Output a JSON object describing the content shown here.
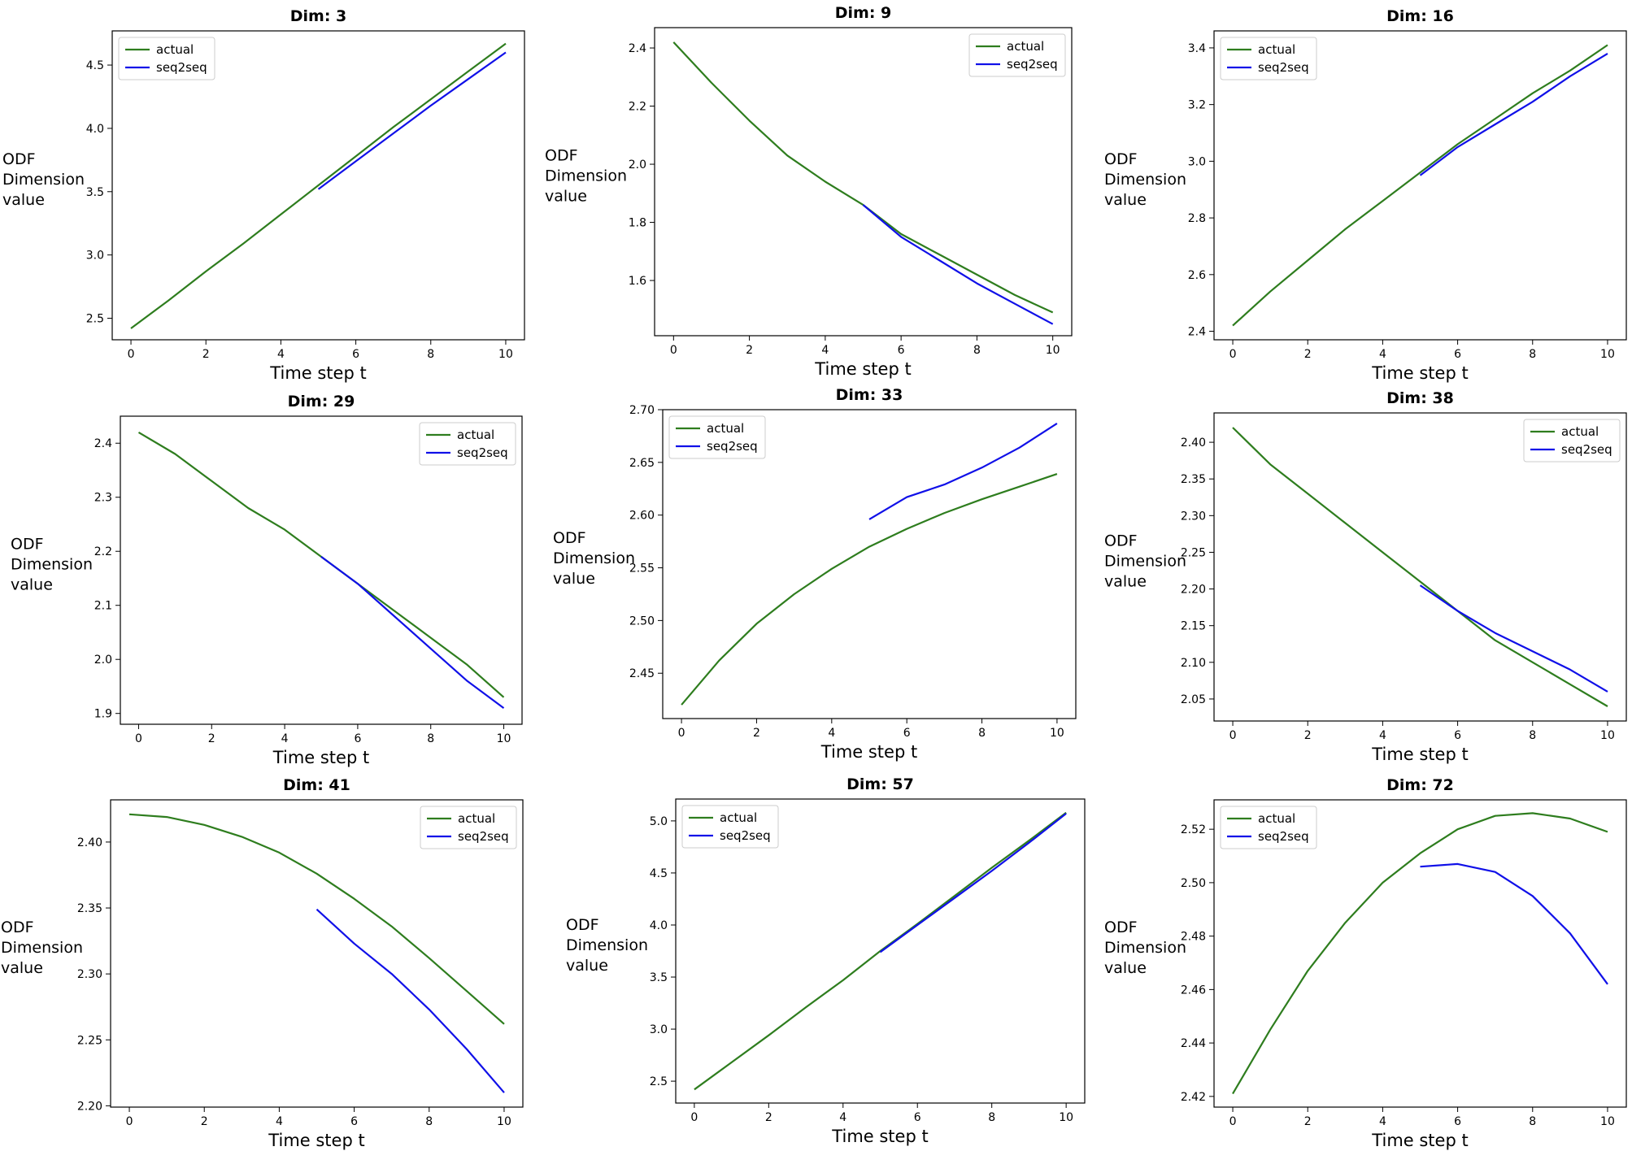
{
  "chart_data": [
    {
      "type": "line",
      "title": "Dim: 3",
      "xlabel": "Time step t",
      "ylabel_lines": [
        "ODF",
        "Dimension",
        "value"
      ],
      "legend_position": "upper-left",
      "xlim": [
        -0.5,
        10.5
      ],
      "ylim": [
        2.33,
        4.77
      ],
      "xticks": [
        0,
        2,
        4,
        6,
        8,
        10
      ],
      "yticks": [
        2.5,
        3.0,
        3.5,
        4.0,
        4.5
      ],
      "ytick_labels": [
        "2.5",
        "3.0",
        "3.5",
        "4.0",
        "4.5"
      ],
      "series": [
        {
          "name": "actual",
          "color": "#2e7d1e",
          "x": [
            0,
            1,
            2,
            3,
            4,
            5,
            6,
            7,
            8,
            9,
            10
          ],
          "y": [
            2.42,
            2.64,
            2.87,
            3.09,
            3.32,
            3.55,
            3.78,
            4.01,
            4.23,
            4.45,
            4.67
          ]
        },
        {
          "name": "seq2seq",
          "color": "#1010e8",
          "x": [
            5,
            6,
            7,
            8,
            9,
            10
          ],
          "y": [
            3.52,
            3.74,
            3.96,
            4.18,
            4.39,
            4.6
          ]
        }
      ]
    },
    {
      "type": "line",
      "title": "Dim: 9",
      "xlabel": "Time step t",
      "ylabel_lines": [
        "ODF",
        "Dimension",
        "value"
      ],
      "legend_position": "upper-right",
      "xlim": [
        -0.5,
        10.5
      ],
      "ylim": [
        1.41,
        2.47
      ],
      "xticks": [
        0,
        2,
        4,
        6,
        8,
        10
      ],
      "yticks": [
        1.6,
        1.8,
        2.0,
        2.2,
        2.4
      ],
      "ytick_labels": [
        "1.6",
        "1.8",
        "2.0",
        "2.2",
        "2.4"
      ],
      "series": [
        {
          "name": "actual",
          "color": "#2e7d1e",
          "x": [
            0,
            1,
            2,
            3,
            4,
            5,
            6,
            7,
            8,
            9,
            10
          ],
          "y": [
            2.42,
            2.28,
            2.15,
            2.03,
            1.94,
            1.86,
            1.76,
            1.69,
            1.62,
            1.55,
            1.49
          ]
        },
        {
          "name": "seq2seq",
          "color": "#1010e8",
          "x": [
            5,
            6,
            7,
            8,
            9,
            10
          ],
          "y": [
            1.86,
            1.75,
            1.67,
            1.59,
            1.52,
            1.45
          ]
        }
      ]
    },
    {
      "type": "line",
      "title": "Dim: 16",
      "xlabel": "Time step t",
      "ylabel_lines": [
        "ODF",
        "Dimension",
        "value"
      ],
      "legend_position": "upper-left",
      "xlim": [
        -0.5,
        10.5
      ],
      "ylim": [
        2.37,
        3.46
      ],
      "xticks": [
        0,
        2,
        4,
        6,
        8,
        10
      ],
      "yticks": [
        2.4,
        2.6,
        2.8,
        3.0,
        3.2,
        3.4
      ],
      "ytick_labels": [
        "2.4",
        "2.6",
        "2.8",
        "3.0",
        "3.2",
        "3.4"
      ],
      "series": [
        {
          "name": "actual",
          "color": "#2e7d1e",
          "x": [
            0,
            1,
            2,
            3,
            4,
            5,
            6,
            7,
            8,
            9,
            10
          ],
          "y": [
            2.42,
            2.54,
            2.65,
            2.76,
            2.86,
            2.96,
            3.06,
            3.15,
            3.24,
            3.32,
            3.41
          ]
        },
        {
          "name": "seq2seq",
          "color": "#1010e8",
          "x": [
            5,
            6,
            7,
            8,
            9,
            10
          ],
          "y": [
            2.95,
            3.05,
            3.13,
            3.21,
            3.3,
            3.38
          ]
        }
      ]
    },
    {
      "type": "line",
      "title": "Dim: 29",
      "xlabel": "Time step t",
      "ylabel_lines": [
        "ODF",
        "Dimension",
        "value"
      ],
      "legend_position": "upper-right",
      "xlim": [
        -0.5,
        10.5
      ],
      "ylim": [
        1.88,
        2.45
      ],
      "xticks": [
        0,
        2,
        4,
        6,
        8,
        10
      ],
      "yticks": [
        1.9,
        2.0,
        2.1,
        2.2,
        2.3,
        2.4
      ],
      "ytick_labels": [
        "1.9",
        "2.0",
        "2.1",
        "2.2",
        "2.3",
        "2.4"
      ],
      "series": [
        {
          "name": "actual",
          "color": "#2e7d1e",
          "x": [
            0,
            1,
            2,
            3,
            4,
            5,
            6,
            7,
            8,
            9,
            10
          ],
          "y": [
            2.42,
            2.38,
            2.33,
            2.28,
            2.24,
            2.19,
            2.14,
            2.09,
            2.04,
            1.99,
            1.93
          ]
        },
        {
          "name": "seq2seq",
          "color": "#1010e8",
          "x": [
            5,
            6,
            7,
            8,
            9,
            10
          ],
          "y": [
            2.19,
            2.14,
            2.08,
            2.02,
            1.96,
            1.91
          ]
        }
      ]
    },
    {
      "type": "line",
      "title": "Dim: 33",
      "xlabel": "Time step t",
      "ylabel_lines": [
        "ODF",
        "Dimension",
        "value"
      ],
      "legend_position": "upper-left",
      "xlim": [
        -0.5,
        10.5
      ],
      "ylim": [
        2.407,
        2.7
      ],
      "xticks": [
        0,
        2,
        4,
        6,
        8,
        10
      ],
      "yticks": [
        2.45,
        2.5,
        2.55,
        2.6,
        2.65,
        2.7
      ],
      "ytick_labels": [
        "2.45",
        "2.50",
        "2.55",
        "2.60",
        "2.65",
        "2.70"
      ],
      "series": [
        {
          "name": "actual",
          "color": "#2e7d1e",
          "x": [
            0,
            1,
            2,
            3,
            4,
            5,
            6,
            7,
            8,
            9,
            10
          ],
          "y": [
            2.42,
            2.462,
            2.497,
            2.525,
            2.549,
            2.57,
            2.587,
            2.602,
            2.615,
            2.627,
            2.639
          ]
        },
        {
          "name": "seq2seq",
          "color": "#1010e8",
          "x": [
            5,
            6,
            7,
            8,
            9,
            10
          ],
          "y": [
            2.596,
            2.617,
            2.629,
            2.645,
            2.664,
            2.687
          ]
        }
      ]
    },
    {
      "type": "line",
      "title": "Dim: 38",
      "xlabel": "Time step t",
      "ylabel_lines": [
        "ODF",
        "Dimension",
        "value"
      ],
      "legend_position": "upper-right",
      "xlim": [
        -0.5,
        10.5
      ],
      "ylim": [
        2.02,
        2.44
      ],
      "xticks": [
        0,
        2,
        4,
        6,
        8,
        10
      ],
      "yticks": [
        2.05,
        2.1,
        2.15,
        2.2,
        2.25,
        2.3,
        2.35,
        2.4
      ],
      "ytick_labels": [
        "2.05",
        "2.10",
        "2.15",
        "2.20",
        "2.25",
        "2.30",
        "2.35",
        "2.40"
      ],
      "series": [
        {
          "name": "actual",
          "color": "#2e7d1e",
          "x": [
            0,
            1,
            2,
            3,
            4,
            5,
            6,
            7,
            8,
            9,
            10
          ],
          "y": [
            2.42,
            2.37,
            2.33,
            2.29,
            2.25,
            2.21,
            2.17,
            2.13,
            2.1,
            2.07,
            2.04
          ]
        },
        {
          "name": "seq2seq",
          "color": "#1010e8",
          "x": [
            5,
            6,
            7,
            8,
            9,
            10
          ],
          "y": [
            2.205,
            2.17,
            2.14,
            2.115,
            2.09,
            2.06
          ]
        }
      ]
    },
    {
      "type": "line",
      "title": "Dim: 41",
      "xlabel": "Time step t",
      "ylabel_lines": [
        "ODF",
        "Dimension",
        "value"
      ],
      "legend_position": "upper-right",
      "xlim": [
        -0.5,
        10.5
      ],
      "ylim": [
        2.199,
        2.432
      ],
      "xticks": [
        0,
        2,
        4,
        6,
        8,
        10
      ],
      "yticks": [
        2.2,
        2.25,
        2.3,
        2.35,
        2.4
      ],
      "ytick_labels": [
        "2.20",
        "2.25",
        "2.30",
        "2.35",
        "2.40"
      ],
      "series": [
        {
          "name": "actual",
          "color": "#2e7d1e",
          "x": [
            0,
            1,
            2,
            3,
            4,
            5,
            6,
            7,
            8,
            9,
            10
          ],
          "y": [
            2.421,
            2.419,
            2.413,
            2.404,
            2.392,
            2.376,
            2.357,
            2.336,
            2.312,
            2.287,
            2.262
          ]
        },
        {
          "name": "seq2seq",
          "color": "#1010e8",
          "x": [
            5,
            6,
            7,
            8,
            9,
            10
          ],
          "y": [
            2.349,
            2.323,
            2.3,
            2.273,
            2.243,
            2.21
          ]
        }
      ]
    },
    {
      "type": "line",
      "title": "Dim: 57",
      "xlabel": "Time step t",
      "ylabel_lines": [
        "ODF",
        "Dimension",
        "value"
      ],
      "legend_position": "upper-left",
      "xlim": [
        -0.5,
        10.5
      ],
      "ylim": [
        2.29,
        5.21
      ],
      "xticks": [
        0,
        2,
        4,
        6,
        8,
        10
      ],
      "yticks": [
        2.5,
        3.0,
        3.5,
        4.0,
        4.5,
        5.0
      ],
      "ytick_labels": [
        "2.5",
        "3.0",
        "3.5",
        "4.0",
        "4.5",
        "5.0"
      ],
      "series": [
        {
          "name": "actual",
          "color": "#2e7d1e",
          "x": [
            0,
            1,
            2,
            3,
            4,
            5,
            6,
            7,
            8,
            9,
            10
          ],
          "y": [
            2.42,
            2.68,
            2.94,
            3.21,
            3.47,
            3.75,
            4.01,
            4.28,
            4.55,
            4.81,
            5.08
          ]
        },
        {
          "name": "seq2seq",
          "color": "#1010e8",
          "x": [
            5,
            6,
            7,
            8,
            9,
            10
          ],
          "y": [
            3.74,
            4.0,
            4.26,
            4.52,
            4.79,
            5.07
          ]
        }
      ]
    },
    {
      "type": "line",
      "title": "Dim: 72",
      "xlabel": "Time step t",
      "ylabel_lines": [
        "ODF",
        "Dimension",
        "value"
      ],
      "legend_position": "upper-left",
      "xlim": [
        -0.5,
        10.5
      ],
      "ylim": [
        2.416,
        2.531
      ],
      "xticks": [
        0,
        2,
        4,
        6,
        8,
        10
      ],
      "yticks": [
        2.42,
        2.44,
        2.46,
        2.48,
        2.5,
        2.52
      ],
      "ytick_labels": [
        "2.42",
        "2.44",
        "2.46",
        "2.48",
        "2.50",
        "2.52"
      ],
      "series": [
        {
          "name": "actual",
          "color": "#2e7d1e",
          "x": [
            0,
            1,
            2,
            3,
            4,
            5,
            6,
            7,
            8,
            9,
            10
          ],
          "y": [
            2.421,
            2.445,
            2.467,
            2.485,
            2.5,
            2.511,
            2.52,
            2.525,
            2.526,
            2.524,
            2.519
          ]
        },
        {
          "name": "seq2seq",
          "color": "#1010e8",
          "x": [
            5,
            6,
            7,
            8,
            9,
            10
          ],
          "y": [
            2.506,
            2.507,
            2.504,
            2.495,
            2.481,
            2.462
          ]
        }
      ]
    }
  ]
}
